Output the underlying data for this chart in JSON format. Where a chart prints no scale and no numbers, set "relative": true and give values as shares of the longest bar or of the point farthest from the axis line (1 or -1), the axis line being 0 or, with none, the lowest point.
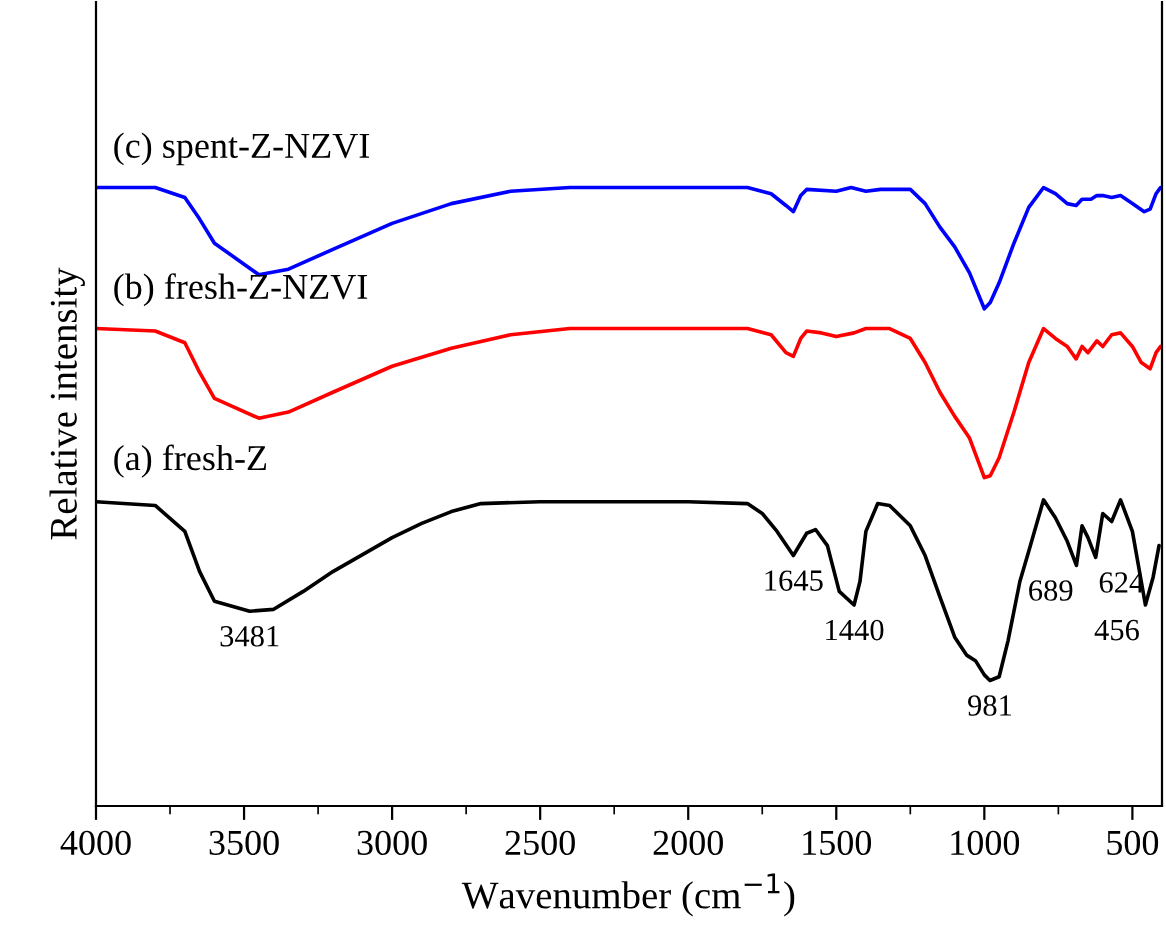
{
  "chart_data": {
    "type": "line",
    "relative": true,
    "xlabel": "Wavenumber (cm$^{−1}$)",
    "ylabel": "Relative intensity",
    "xlim": [
      4000,
      400
    ],
    "xticks": [
      4000,
      {
        "value": 3750,
        "label": null
      },
      3500,
      {
        "value": 3250,
        "label": null
      },
      3000,
      {
        "value": 2750,
        "label": null
      },
      2500,
      {
        "value": 2250,
        "label": null
      },
      2000,
      {
        "value": 1750,
        "label": null
      },
      1500,
      {
        "value": 1250,
        "label": null
      },
      1000,
      {
        "value": 750,
        "label": null
      },
      500
    ],
    "grid": false,
    "legend": false,
    "marker": "none",
    "line_style": "solid",
    "series": [
      {
        "name": "(c) spent-Z-NZVI",
        "color": "#0000ff",
        "x": [
          4000,
          3800,
          3700,
          3650,
          3600,
          3450,
          3350,
          3200,
          3000,
          2800,
          2600,
          2400,
          1800,
          1720,
          1670,
          1645,
          1620,
          1600,
          1500,
          1450,
          1400,
          1350,
          1250,
          1200,
          1150,
          1100,
          1050,
          1000,
          980,
          950,
          900,
          850,
          800,
          760,
          720,
          690,
          670,
          640,
          620,
          600,
          570,
          540,
          500,
          460,
          440,
          420,
          405
        ],
        "values": [
          1,
          1,
          0.984,
          0.949,
          0.91,
          0.859,
          0.868,
          0.9,
          0.942,
          0.974,
          0.994,
          1,
          1,
          0.99,
          0.971,
          0.961,
          0.987,
          0.997,
          0.994,
          1,
          0.994,
          0.997,
          0.997,
          0.974,
          0.936,
          0.904,
          0.862,
          0.804,
          0.814,
          0.846,
          0.91,
          0.968,
          1,
          0.99,
          0.974,
          0.971,
          0.981,
          0.981,
          0.987,
          0.987,
          0.984,
          0.987,
          0.974,
          0.961,
          0.965,
          0.99,
          1
        ]
      },
      {
        "name": "(b) fresh-Z-NZVI",
        "color": "#ff0000",
        "x": [
          4000,
          3800,
          3700,
          3650,
          3600,
          3450,
          3350,
          3200,
          3000,
          2800,
          2600,
          2400,
          1800,
          1720,
          1670,
          1645,
          1620,
          1600,
          1550,
          1500,
          1440,
          1400,
          1320,
          1250,
          1200,
          1150,
          1100,
          1050,
          1000,
          980,
          950,
          900,
          850,
          800,
          760,
          720,
          690,
          670,
          650,
          620,
          600,
          570,
          540,
          500,
          470,
          440,
          420,
          405
        ],
        "values": [
          0.772,
          0.768,
          0.749,
          0.701,
          0.659,
          0.627,
          0.637,
          0.669,
          0.711,
          0.74,
          0.762,
          0.772,
          0.772,
          0.762,
          0.733,
          0.727,
          0.756,
          0.768,
          0.765,
          0.759,
          0.765,
          0.772,
          0.772,
          0.756,
          0.717,
          0.669,
          0.63,
          0.595,
          0.531,
          0.534,
          0.563,
          0.637,
          0.717,
          0.772,
          0.756,
          0.743,
          0.723,
          0.743,
          0.733,
          0.752,
          0.743,
          0.762,
          0.765,
          0.743,
          0.717,
          0.707,
          0.733,
          0.743
        ]
      },
      {
        "name": "(a) fresh-Z",
        "color": "#000000",
        "x": [
          4000,
          3800,
          3700,
          3650,
          3600,
          3481,
          3400,
          3300,
          3200,
          3000,
          2900,
          2800,
          2700,
          2500,
          2000,
          1800,
          1750,
          1700,
          1645,
          1600,
          1570,
          1530,
          1490,
          1440,
          1420,
          1400,
          1360,
          1320,
          1250,
          1200,
          1150,
          1100,
          1060,
          1030,
          1000,
          981,
          950,
          920,
          880,
          850,
          800,
          760,
          720,
          689,
          670,
          650,
          624,
          600,
          570,
          540,
          500,
          470,
          456,
          430,
          410
        ],
        "values": [
          0.492,
          0.486,
          0.444,
          0.379,
          0.331,
          0.315,
          0.318,
          0.347,
          0.379,
          0.434,
          0.457,
          0.476,
          0.489,
          0.492,
          0.492,
          0.489,
          0.473,
          0.444,
          0.405,
          0.441,
          0.447,
          0.421,
          0.347,
          0.325,
          0.363,
          0.444,
          0.489,
          0.486,
          0.453,
          0.405,
          0.338,
          0.273,
          0.244,
          0.235,
          0.212,
          0.203,
          0.209,
          0.267,
          0.363,
          0.412,
          0.495,
          0.466,
          0.428,
          0.389,
          0.453,
          0.434,
          0.402,
          0.473,
          0.46,
          0.495,
          0.444,
          0.363,
          0.325,
          0.37,
          0.421
        ]
      }
    ],
    "annotations": [
      {
        "text": "3481",
        "x": 3481,
        "y": 0.315
      },
      {
        "text": "1645",
        "x": 1645,
        "y": 0.405
      },
      {
        "text": "1440",
        "x": 1440,
        "y": 0.325
      },
      {
        "text": "981",
        "x": 981,
        "y": 0.203
      },
      {
        "text": "689",
        "x": 689,
        "y": 0.389
      },
      {
        "text": "624",
        "x": 624,
        "y": 0.402
      },
      {
        "text": "456",
        "x": 456,
        "y": 0.325
      }
    ]
  }
}
